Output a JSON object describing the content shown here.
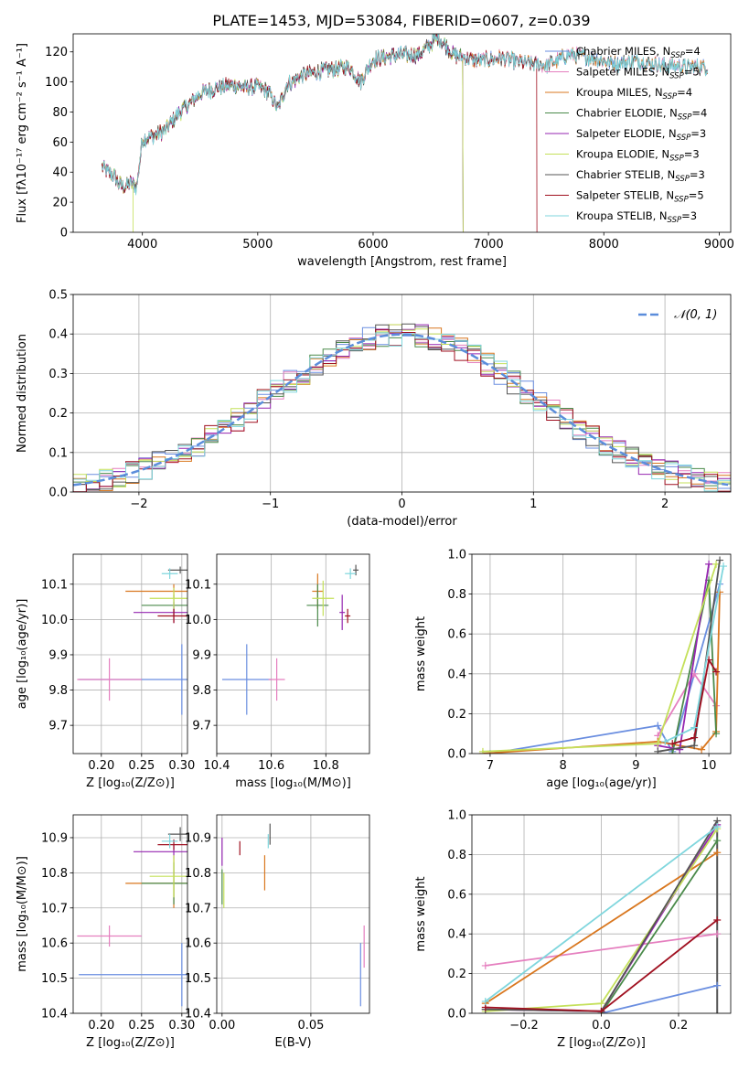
{
  "figure": {
    "title": "PLATE=1453, MJD=53084, FIBERID=0607, z=0.039"
  },
  "colors": {
    "Chabrier MILES": "#6a8ee0",
    "Salpeter MILES": "#e57fbf",
    "Kroupa MILES": "#d9771f",
    "Chabrier ELODIE": "#4a8a4a",
    "Salpeter ELODIE": "#9526b0",
    "Kroupa ELODIE": "#c4e05a",
    "Chabrier STELIB": "#555555",
    "Salpeter STELIB": "#a01020",
    "Kroupa STELIB": "#7fd6dd",
    "normal_curve": "#5b8ddb"
  },
  "chart_data": [
    {
      "id": "spectrum",
      "type": "line",
      "title": "PLATE=1453, MJD=53084, FIBERID=0607, z=0.039",
      "xlabel": "wavelength [Angstrom, rest frame]",
      "ylabel": "Flux [fλ10⁻¹⁷ erg cm⁻² s⁻¹ A⁻¹]",
      "xlim": [
        3400,
        9100
      ],
      "ylim": [
        0,
        132
      ],
      "xticks": [
        4000,
        5000,
        6000,
        7000,
        8000,
        9000
      ],
      "yticks": [
        0,
        20,
        40,
        60,
        80,
        100,
        120
      ],
      "grid": false,
      "legend_position": "right",
      "series": [
        {
          "name": "Chabrier MILES, N_SSP=4",
          "label_main": "Chabrier MILES, N",
          "label_sub": "SSP",
          "label_tail": "=4",
          "key": "Chabrier MILES",
          "x_end": 8900,
          "drop_at": null
        },
        {
          "name": "Salpeter MILES, N_SSP=5",
          "label_main": "Salpeter MILES, N",
          "label_sub": "SSP",
          "label_tail": "=5",
          "key": "Salpeter MILES",
          "x_end": 8900,
          "drop_at": null
        },
        {
          "name": "Kroupa MILES, N_SSP=4",
          "label_main": "Kroupa MILES, N",
          "label_sub": "SSP",
          "label_tail": "=4",
          "key": "Kroupa MILES",
          "x_end": 8900,
          "drop_at": null
        },
        {
          "name": "Chabrier ELODIE, N_SSP=4",
          "label_main": "Chabrier ELODIE, N",
          "label_sub": "SSP",
          "label_tail": "=4",
          "key": "Chabrier ELODIE",
          "x_end": 6780,
          "drop_at": 6780
        },
        {
          "name": "Salpeter ELODIE, N_SSP=3",
          "label_main": "Salpeter ELODIE, N",
          "label_sub": "SSP",
          "label_tail": "=3",
          "key": "Salpeter ELODIE",
          "x_end": 6780,
          "drop_at": 6780
        },
        {
          "name": "Kroupa ELODIE, N_SSP=3",
          "label_main": "Kroupa ELODIE, N",
          "label_sub": "SSP",
          "label_tail": "=3",
          "key": "Kroupa ELODIE",
          "x_end": 6780,
          "drop_at": 6780
        },
        {
          "name": "Chabrier STELIB, N_SSP=3",
          "label_main": "Chabrier STELIB, N",
          "label_sub": "SSP",
          "label_tail": "=3",
          "key": "Chabrier STELIB",
          "x_end": 8900,
          "drop_at": null
        },
        {
          "name": "Salpeter STELIB, N_SSP=5",
          "label_main": "Salpeter STELIB, N",
          "label_sub": "SSP",
          "label_tail": "=5",
          "key": "Salpeter STELIB",
          "x_end": 7420,
          "drop_at": 7420
        },
        {
          "name": "Kroupa STELIB, N_SSP=3",
          "label_main": "Kroupa STELIB, N",
          "label_sub": "SSP",
          "label_tail": "=3",
          "key": "Kroupa STELIB",
          "x_end": 8900,
          "drop_at": null
        }
      ],
      "continuum": {
        "x": [
          3650,
          3700,
          3750,
          3800,
          3850,
          3900,
          3950,
          4000,
          4100,
          4200,
          4300,
          4400,
          4500,
          4600,
          4700,
          4800,
          4900,
          5000,
          5100,
          5175,
          5250,
          5400,
          5600,
          5800,
          5890,
          6000,
          6200,
          6400,
          6563,
          6700,
          6900,
          7100,
          7300,
          7500,
          7700,
          7900,
          8100,
          8300,
          8500,
          8700,
          8900
        ],
        "y": [
          44,
          40,
          38,
          32,
          30,
          33,
          30,
          62,
          64,
          68,
          78,
          85,
          92,
          95,
          97,
          98,
          96,
          97,
          93,
          82,
          98,
          105,
          108,
          110,
          100,
          115,
          118,
          118,
          130,
          118,
          114,
          116,
          113,
          111,
          118,
          116,
          112,
          114,
          111,
          110,
          110
        ]
      }
    },
    {
      "id": "residuals",
      "type": "histogram",
      "xlabel": "(data-model)/error",
      "ylabel": "Normed distribution",
      "xlim": [
        -2.5,
        2.5
      ],
      "ylim": [
        0,
        0.5
      ],
      "xticks": [
        -2,
        -1,
        0,
        1,
        2
      ],
      "xtick_labels": [
        "−2",
        "−1",
        "0",
        "1",
        "2"
      ],
      "yticks": [
        0.0,
        0.1,
        0.2,
        0.3,
        0.4,
        0.5
      ],
      "ytick_labels": [
        "0.0",
        "0.1",
        "0.2",
        "0.3",
        "0.4",
        "0.5"
      ],
      "grid": true,
      "bin_width": 0.1,
      "legend": {
        "label": "𝒩(0, 1)",
        "position": "top-right"
      },
      "normal": {
        "mean": 0,
        "sigma": 1
      }
    },
    {
      "id": "age_vs_Z",
      "type": "scatter",
      "xlabel": "Z [log₁₀(Z/Z⊙)]",
      "ylabel": "age  [log₁₀(age/yr)]",
      "xlim": [
        0.165,
        0.307
      ],
      "ylim": [
        9.62,
        10.185
      ],
      "xticks": [
        0.2,
        0.25,
        0.3
      ],
      "xtick_labels": [
        "0.20",
        "0.25",
        "0.30"
      ],
      "yticks": [
        9.7,
        9.8,
        9.9,
        10.0,
        10.1
      ],
      "ytick_labels": [
        "9.7",
        "9.8",
        "9.9",
        "10.0",
        "10.1"
      ],
      "grid": true,
      "points": [
        {
          "key": "Chabrier MILES",
          "x": 0.3,
          "xerr": 0.128,
          "y": 9.83,
          "yerr": 0.1
        },
        {
          "key": "Salpeter MILES",
          "x": 0.21,
          "xerr": 0.04,
          "y": 9.83,
          "yerr": 0.06
        },
        {
          "key": "Kroupa MILES",
          "x": 0.29,
          "xerr": 0.06,
          "y": 10.08,
          "yerr": 0.02
        },
        {
          "key": "Chabrier ELODIE",
          "x": 0.29,
          "xerr": 0.04,
          "y": 10.04,
          "yerr": 0.03
        },
        {
          "key": "Salpeter ELODIE",
          "x": 0.29,
          "xerr": 0.05,
          "y": 10.02,
          "yerr": 0.03
        },
        {
          "key": "Kroupa ELODIE",
          "x": 0.29,
          "xerr": 0.03,
          "y": 10.06,
          "yerr": 0.03
        },
        {
          "key": "Chabrier STELIB",
          "x": 0.298,
          "xerr": 0.015,
          "y": 10.14,
          "yerr": 0.01
        },
        {
          "key": "Salpeter STELIB",
          "x": 0.29,
          "xerr": 0.02,
          "y": 10.01,
          "yerr": 0.02
        },
        {
          "key": "Kroupa STELIB",
          "x": 0.285,
          "xerr": 0.01,
          "y": 10.13,
          "yerr": 0.015
        }
      ]
    },
    {
      "id": "age_vs_mass",
      "type": "scatter",
      "xlabel": "mass [log₁₀(M/M⊙)]",
      "ylabel": "",
      "xlim": [
        10.4,
        10.96
      ],
      "ylim": [
        9.62,
        10.185
      ],
      "xticks": [
        10.4,
        10.6,
        10.8
      ],
      "xtick_labels": [
        "10.4",
        "10.6",
        "10.8"
      ],
      "yticks": [
        9.7,
        9.8,
        9.9,
        10.0,
        10.1
      ],
      "ytick_labels": [
        "9.7",
        "9.8",
        "9.9",
        "10.0",
        "10.1"
      ],
      "grid": true,
      "points": [
        {
          "key": "Chabrier MILES",
          "x": 10.51,
          "xerr": 0.09,
          "y": 9.83,
          "yerr": 0.1
        },
        {
          "key": "Salpeter MILES",
          "x": 10.62,
          "xerr": 0.03,
          "y": 9.83,
          "yerr": 0.06
        },
        {
          "key": "Kroupa MILES",
          "x": 10.77,
          "xerr": 0.02,
          "y": 10.08,
          "yerr": 0.05
        },
        {
          "key": "Chabrier ELODIE",
          "x": 10.77,
          "xerr": 0.04,
          "y": 10.04,
          "yerr": 0.06
        },
        {
          "key": "Salpeter ELODIE",
          "x": 10.86,
          "xerr": 0.01,
          "y": 10.02,
          "yerr": 0.05
        },
        {
          "key": "Kroupa ELODIE",
          "x": 10.79,
          "xerr": 0.04,
          "y": 10.06,
          "yerr": 0.05
        },
        {
          "key": "Chabrier STELIB",
          "x": 10.91,
          "xerr": 0.01,
          "y": 10.14,
          "yerr": 0.015
        },
        {
          "key": "Salpeter STELIB",
          "x": 10.88,
          "xerr": 0.01,
          "y": 10.01,
          "yerr": 0.02
        },
        {
          "key": "Kroupa STELIB",
          "x": 10.89,
          "xerr": 0.02,
          "y": 10.13,
          "yerr": 0.015
        }
      ]
    },
    {
      "id": "massweight_vs_age",
      "type": "line",
      "xlabel": "age  [log₁₀(age/yr)]",
      "ylabel": "mass weight",
      "xlim": [
        6.75,
        10.3
      ],
      "ylim": [
        0,
        1.0
      ],
      "xticks": [
        7,
        8,
        9,
        10
      ],
      "xtick_labels": [
        "7",
        "8",
        "9",
        "10"
      ],
      "yticks": [
        0.0,
        0.2,
        0.4,
        0.6,
        0.8,
        1.0
      ],
      "ytick_labels": [
        "0.0",
        "0.2",
        "0.4",
        "0.6",
        "0.8",
        "1.0"
      ],
      "grid": true,
      "series": [
        {
          "key": "Chabrier MILES",
          "x": [
            7.0,
            9.3,
            9.5,
            10.15
          ],
          "y": [
            0.0,
            0.14,
            0.01,
            0.85
          ]
        },
        {
          "key": "Salpeter MILES",
          "x": [
            9.3,
            9.8,
            10.1
          ],
          "y": [
            0.09,
            0.4,
            0.24
          ]
        },
        {
          "key": "Kroupa MILES",
          "x": [
            6.9,
            9.3,
            9.9,
            10.1,
            10.15
          ],
          "y": [
            0.0,
            0.06,
            0.02,
            0.11,
            0.81
          ]
        },
        {
          "key": "Chabrier ELODIE",
          "x": [
            9.5,
            10.0,
            10.1
          ],
          "y": [
            0.0,
            0.87,
            0.1
          ]
        },
        {
          "key": "Salpeter ELODIE",
          "x": [
            9.3,
            9.6,
            10.0
          ],
          "y": [
            0.04,
            0.02,
            0.95
          ]
        },
        {
          "key": "Kroupa ELODIE",
          "x": [
            6.9,
            9.3,
            10.1
          ],
          "y": [
            0.01,
            0.05,
            0.95
          ]
        },
        {
          "key": "Chabrier STELIB",
          "x": [
            9.3,
            9.8,
            10.15
          ],
          "y": [
            0.01,
            0.04,
            0.97
          ]
        },
        {
          "key": "Salpeter STELIB",
          "x": [
            9.5,
            9.8,
            10.0,
            10.1
          ],
          "y": [
            0.05,
            0.08,
            0.47,
            0.41
          ]
        },
        {
          "key": "Kroupa STELIB",
          "x": [
            9.4,
            9.8,
            10.2
          ],
          "y": [
            0.06,
            0.13,
            0.94
          ]
        }
      ]
    },
    {
      "id": "mass_vs_Z",
      "type": "scatter",
      "xlabel": "Z [log₁₀(Z/Z⊙)]",
      "ylabel": "mass [log₁₀(M/M⊙)]",
      "xlim": [
        0.165,
        0.307
      ],
      "ylim": [
        10.4,
        10.965
      ],
      "xticks": [
        0.2,
        0.25,
        0.3
      ],
      "xtick_labels": [
        "0.20",
        "0.25",
        "0.30"
      ],
      "yticks": [
        10.4,
        10.5,
        10.6,
        10.7,
        10.8,
        10.9
      ],
      "ytick_labels": [
        "10.4",
        "10.5",
        "10.6",
        "10.7",
        "10.8",
        "10.9"
      ],
      "grid": true,
      "points": [
        {
          "key": "Chabrier MILES",
          "x": 0.3,
          "xerr": 0.128,
          "y": 10.51,
          "yerr": 0.09
        },
        {
          "key": "Salpeter MILES",
          "x": 0.21,
          "xerr": 0.04,
          "y": 10.62,
          "yerr": 0.03
        },
        {
          "key": "Kroupa MILES",
          "x": 0.29,
          "xerr": 0.06,
          "y": 10.77,
          "yerr": 0.07
        },
        {
          "key": "Chabrier ELODIE",
          "x": 0.29,
          "xerr": 0.04,
          "y": 10.77,
          "yerr": 0.06
        },
        {
          "key": "Salpeter ELODIE",
          "x": 0.29,
          "xerr": 0.05,
          "y": 10.86,
          "yerr": 0.02
        },
        {
          "key": "Kroupa ELODIE",
          "x": 0.29,
          "xerr": 0.03,
          "y": 10.79,
          "yerr": 0.06
        },
        {
          "key": "Chabrier STELIB",
          "x": 0.298,
          "xerr": 0.015,
          "y": 10.91,
          "yerr": 0.02
        },
        {
          "key": "Salpeter STELIB",
          "x": 0.29,
          "xerr": 0.02,
          "y": 10.88,
          "yerr": 0.015
        },
        {
          "key": "Kroupa STELIB",
          "x": 0.285,
          "xerr": 0.01,
          "y": 10.89,
          "yerr": 0.02
        }
      ]
    },
    {
      "id": "mass_vs_EBV",
      "type": "scatter",
      "xlabel": "E(B-V)",
      "ylabel": "",
      "xlim": [
        -0.003,
        0.083
      ],
      "ylim": [
        10.4,
        10.965
      ],
      "xticks": [
        0.0,
        0.05
      ],
      "xtick_labels": [
        "0.00",
        "0.05"
      ],
      "yticks": [
        10.4,
        10.5,
        10.6,
        10.7,
        10.8,
        10.9
      ],
      "ytick_labels": [
        "10.4",
        "10.5",
        "10.6",
        "10.7",
        "10.8",
        "10.9"
      ],
      "grid": true,
      "points": [
        {
          "key": "Chabrier MILES",
          "x": 0.078,
          "xerr": 0,
          "y": 10.51,
          "yerr": 0.09
        },
        {
          "key": "Salpeter MILES",
          "x": 0.08,
          "xerr": 0,
          "y": 10.59,
          "yerr": 0.06
        },
        {
          "key": "Kroupa MILES",
          "x": 0.024,
          "xerr": 0,
          "y": 10.8,
          "yerr": 0.05
        },
        {
          "key": "Chabrier ELODIE",
          "x": 0.0,
          "xerr": 0,
          "y": 10.76,
          "yerr": 0.05
        },
        {
          "key": "Salpeter ELODIE",
          "x": 0.0,
          "xerr": 0,
          "y": 10.86,
          "yerr": 0.04
        },
        {
          "key": "Kroupa ELODIE",
          "x": 0.001,
          "xerr": 0,
          "y": 10.75,
          "yerr": 0.05
        },
        {
          "key": "Chabrier STELIB",
          "x": 0.027,
          "xerr": 0,
          "y": 10.91,
          "yerr": 0.03
        },
        {
          "key": "Salpeter STELIB",
          "x": 0.01,
          "xerr": 0,
          "y": 10.87,
          "yerr": 0.02
        },
        {
          "key": "Kroupa STELIB",
          "x": 0.026,
          "xerr": 0,
          "y": 10.89,
          "yerr": 0.02
        }
      ]
    },
    {
      "id": "massweight_vs_Z",
      "type": "line",
      "xlabel": "Z [log₁₀(Z/Z⊙)]",
      "ylabel": "mass weight",
      "xlim": [
        -0.335,
        0.335
      ],
      "ylim": [
        0,
        1.0
      ],
      "xticks": [
        -0.2,
        0.0,
        0.2
      ],
      "xtick_labels": [
        "−0.2",
        "0.0",
        "0.2"
      ],
      "yticks": [
        0.0,
        0.2,
        0.4,
        0.6,
        0.8,
        1.0
      ],
      "ytick_labels": [
        "0.0",
        "0.2",
        "0.4",
        "0.6",
        "0.8",
        "1.0"
      ],
      "grid": true,
      "series": [
        {
          "key": "Chabrier MILES",
          "x": [
            0.0,
            0.3
          ],
          "y": [
            0.0,
            0.14
          ]
        },
        {
          "key": "Salpeter MILES",
          "x": [
            -0.3,
            0.3
          ],
          "y": [
            0.24,
            0.4
          ]
        },
        {
          "key": "Kroupa MILES",
          "x": [
            -0.3,
            0.3
          ],
          "y": [
            0.05,
            0.81
          ]
        },
        {
          "key": "Chabrier ELODIE",
          "x": [
            0.0,
            0.3
          ],
          "y": [
            0.0,
            0.87
          ]
        },
        {
          "key": "Salpeter ELODIE",
          "x": [
            -0.3,
            0.0,
            0.3
          ],
          "y": [
            0.02,
            0.01,
            0.95
          ]
        },
        {
          "key": "Kroupa ELODIE",
          "x": [
            -0.3,
            0.0,
            0.3
          ],
          "y": [
            0.01,
            0.05,
            0.93
          ]
        },
        {
          "key": "Chabrier STELIB",
          "x": [
            -0.3,
            0.0,
            0.3
          ],
          "y": [
            0.02,
            0.01,
            0.97
          ]
        },
        {
          "key": "Salpeter STELIB",
          "x": [
            -0.3,
            0.0,
            0.3
          ],
          "y": [
            0.03,
            0.01,
            0.47
          ]
        },
        {
          "key": "Kroupa STELIB",
          "x": [
            -0.3,
            0.3
          ],
          "y": [
            0.06,
            0.94
          ]
        }
      ],
      "vertical_markers": {
        "x": 0.3,
        "y": [
          0.0,
          0.05,
          0.08,
          0.1,
          0.12,
          0.2,
          0.3,
          0.42,
          0.47,
          0.6,
          0.8,
          0.87,
          0.93,
          0.97
        ]
      }
    }
  ]
}
